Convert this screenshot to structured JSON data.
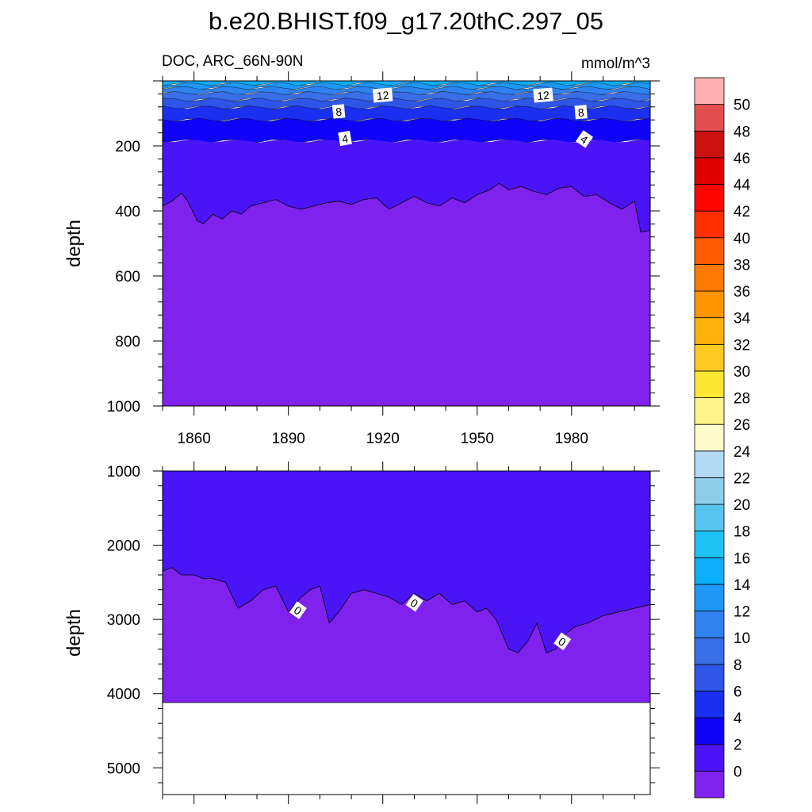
{
  "title": "b.e20.BHIST.f09_g17.20thC.297_05",
  "variable_label": "DOC, ARC_66N-90N",
  "units": "mmol/m^3",
  "colorbar": {
    "labels": [
      "0",
      "2",
      "4",
      "6",
      "8",
      "10",
      "12",
      "14",
      "16",
      "18",
      "20",
      "22",
      "24",
      "26",
      "28",
      "30",
      "32",
      "34",
      "36",
      "38",
      "40",
      "42",
      "44",
      "46",
      "48",
      "50"
    ],
    "colors": [
      "#7f22ee",
      "#4b14f6",
      "#0f04f7",
      "#1a2ff0",
      "#2e55e6",
      "#3a6ee8",
      "#2f82f0",
      "#1e97f5",
      "#0aaef9",
      "#1dc1f4",
      "#58c5f0",
      "#8fcdeb",
      "#b2daf3",
      "#fffccc",
      "#fff48a",
      "#ffe632",
      "#ffca22",
      "#ffb10b",
      "#ff9500",
      "#ff7800",
      "#ff5a00",
      "#ff2f00",
      "#ff0600",
      "#e00000",
      "#cc1111",
      "#e34f4f",
      "#ffb1b1"
    ]
  },
  "chart_data": [
    {
      "type": "heatmap",
      "panel": "upper",
      "title": "DOC, ARC_66N-90N",
      "ylabel": "depth",
      "xlim": [
        1850,
        2005
      ],
      "ylim": [
        1000,
        0
      ],
      "x_ticks": [
        1860,
        1890,
        1920,
        1950,
        1980
      ],
      "y_ticks": [
        200,
        400,
        600,
        800,
        1000
      ],
      "contour_labels": [
        {
          "text": "12",
          "year": 1920,
          "depth": 45
        },
        {
          "text": "12",
          "year": 1971,
          "depth": 45
        },
        {
          "text": "8",
          "year": 1906,
          "depth": 95
        },
        {
          "text": "8",
          "year": 1983,
          "depth": 97
        },
        {
          "text": "4",
          "year": 1908,
          "depth": 178
        },
        {
          "text": "4",
          "year": 1984,
          "depth": 180
        }
      ],
      "bands": [
        {
          "upper_value": 16,
          "depth_top": 0,
          "depth_bottom": 10
        },
        {
          "upper_value": 14,
          "depth_top": 10,
          "depth_bottom": 22
        },
        {
          "upper_value": 12,
          "depth_top": 22,
          "depth_bottom": 38
        },
        {
          "upper_value": 10,
          "depth_top": 38,
          "depth_bottom": 58
        },
        {
          "upper_value": 8,
          "depth_top": 58,
          "depth_bottom": 82
        },
        {
          "upper_value": 6,
          "depth_top": 82,
          "depth_bottom": 120
        },
        {
          "upper_value": 4,
          "depth_top": 120,
          "depth_bottom": 185
        },
        {
          "upper_value": 2,
          "depth_top": 185,
          "depth_bottom": 400
        },
        {
          "upper_value": 0,
          "depth_top": 400,
          "depth_bottom": 1000
        }
      ],
      "contour_2_depth": {
        "years": [
          1850,
          1853,
          1856,
          1858,
          1861,
          1863,
          1866,
          1869,
          1872,
          1875,
          1878,
          1882,
          1886,
          1890,
          1894,
          1898,
          1902,
          1906,
          1910,
          1914,
          1918,
          1922,
          1926,
          1930,
          1934,
          1938,
          1942,
          1946,
          1950,
          1954,
          1957,
          1960,
          1964,
          1968,
          1972,
          1976,
          1980,
          1984,
          1988,
          1992,
          1996,
          2000,
          2002,
          2005
        ],
        "depths": [
          385,
          370,
          345,
          370,
          430,
          440,
          410,
          425,
          400,
          410,
          385,
          375,
          365,
          385,
          395,
          385,
          375,
          370,
          380,
          365,
          360,
          395,
          375,
          355,
          375,
          385,
          360,
          375,
          350,
          335,
          315,
          335,
          325,
          340,
          350,
          330,
          325,
          355,
          350,
          375,
          395,
          370,
          465,
          460
        ]
      }
    },
    {
      "type": "heatmap",
      "panel": "lower",
      "ylabel": "depth",
      "xlim": [
        1850,
        2005
      ],
      "ylim": [
        5360,
        1000
      ],
      "y_ticks": [
        1000,
        2000,
        3000,
        4000,
        5000
      ],
      "data_bottom_depth": 4120,
      "contour_labels": [
        {
          "text": "0",
          "year": 1893,
          "depth": 2880
        },
        {
          "text": "0",
          "year": 1930,
          "depth": 2780
        },
        {
          "text": "0",
          "year": 1977,
          "depth": 3300
        }
      ],
      "bands": [
        {
          "upper_value": 2,
          "depth_top": 1000,
          "depth_bottom": 2700
        },
        {
          "upper_value": 0,
          "depth_top": 2700,
          "depth_bottom": 4120
        }
      ],
      "contour_0_depth": {
        "years": [
          1850,
          1853,
          1856,
          1860,
          1863,
          1866,
          1870,
          1874,
          1878,
          1882,
          1886,
          1890,
          1894,
          1897,
          1900,
          1903,
          1906,
          1910,
          1914,
          1918,
          1922,
          1926,
          1930,
          1934,
          1938,
          1942,
          1946,
          1950,
          1953,
          1956,
          1960,
          1963,
          1966,
          1969,
          1972,
          1975,
          1978,
          1981,
          1985,
          1990,
          1995,
          2000,
          2005
        ],
        "depths": [
          2350,
          2300,
          2400,
          2400,
          2450,
          2450,
          2500,
          2850,
          2750,
          2600,
          2550,
          2900,
          2700,
          2600,
          2550,
          3050,
          2900,
          2650,
          2600,
          2650,
          2700,
          2800,
          2650,
          2750,
          2650,
          2800,
          2750,
          2900,
          2850,
          3000,
          3400,
          3450,
          3300,
          3050,
          3450,
          3400,
          3200,
          3100,
          3050,
          2950,
          2900,
          2850,
          2800
        ]
      }
    }
  ]
}
